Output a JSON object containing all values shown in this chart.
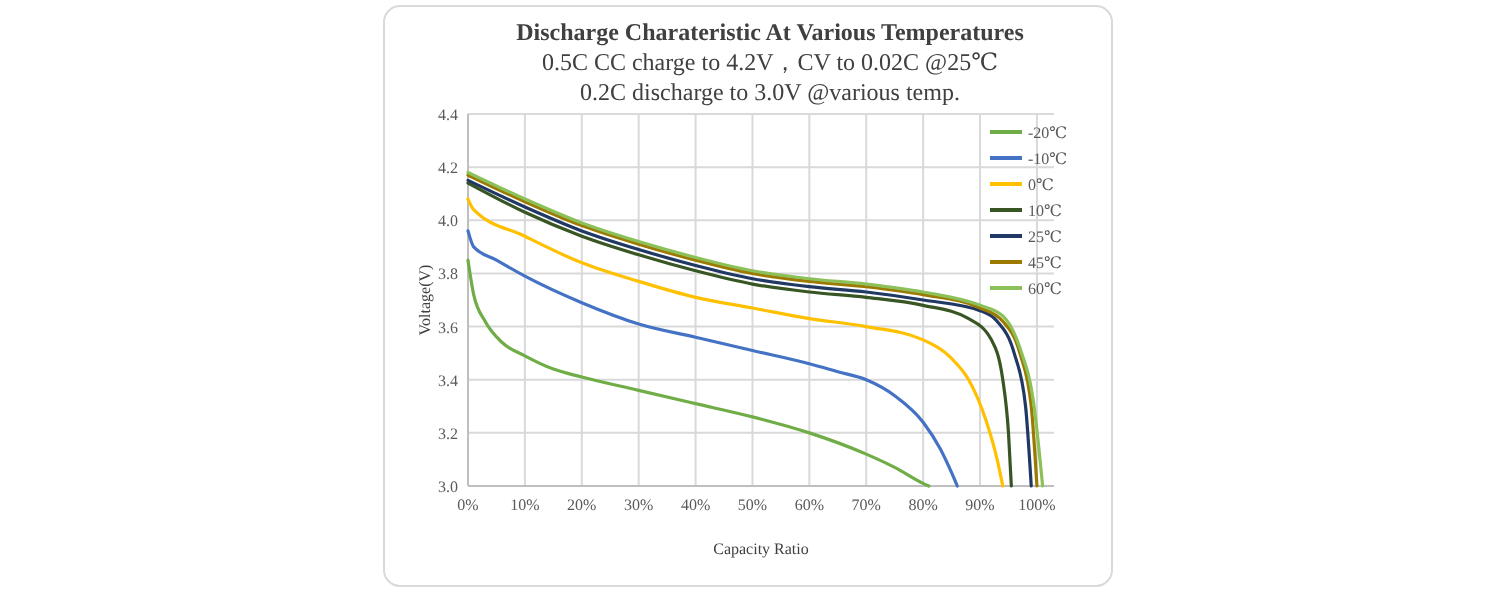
{
  "chart_data": {
    "type": "line",
    "title": "Discharge Charateristic At Various Temperatures",
    "subtitle": "0.5C CC charge to 4.2V，CV to 0.02C @25℃\n0.2C discharge to 3.0V @various temp.",
    "xlabel": "Capacity Ratio",
    "ylabel": "Voltage(V)",
    "xlim": [
      0,
      103
    ],
    "xticks": [
      {
        "value": 0,
        "label": "0%"
      },
      {
        "value": 10,
        "label": "10%"
      },
      {
        "value": 20,
        "label": "20%"
      },
      {
        "value": 30,
        "label": "30%"
      },
      {
        "value": 40,
        "label": "40%"
      },
      {
        "value": 50,
        "label": "50%"
      },
      {
        "value": 60,
        "label": "60%"
      },
      {
        "value": 70,
        "label": "70%"
      },
      {
        "value": 80,
        "label": "80%"
      },
      {
        "value": 90,
        "label": "90%"
      },
      {
        "value": 100,
        "label": "100%"
      }
    ],
    "ylim": [
      3.0,
      4.4
    ],
    "yticks": [
      {
        "value": 3.0,
        "label": "3.0"
      },
      {
        "value": 3.2,
        "label": "3.2"
      },
      {
        "value": 3.4,
        "label": "3.4"
      },
      {
        "value": 3.6,
        "label": "3.6"
      },
      {
        "value": 3.8,
        "label": "3.8"
      },
      {
        "value": 4.0,
        "label": "4.0"
      },
      {
        "value": 4.2,
        "label": "4.2"
      },
      {
        "value": 4.4,
        "label": "4.4"
      }
    ],
    "grid": true,
    "legend": "top right",
    "marker": "none",
    "line_style": "solid",
    "series": [
      {
        "name": "-20℃",
        "color": "#70ad47",
        "x": [
          0,
          1,
          3,
          6,
          10,
          15,
          20,
          30,
          40,
          50,
          60,
          70,
          75,
          80,
          81
        ],
        "values": [
          3.85,
          3.72,
          3.62,
          3.54,
          3.49,
          3.44,
          3.41,
          3.36,
          3.31,
          3.26,
          3.2,
          3.12,
          3.07,
          3.01,
          3.0
        ]
      },
      {
        "name": "-10℃",
        "color": "#4472c4",
        "x": [
          0,
          1,
          5,
          10,
          20,
          30,
          40,
          50,
          60,
          65,
          70,
          75,
          80,
          83,
          85,
          86
        ],
        "values": [
          3.96,
          3.9,
          3.85,
          3.79,
          3.69,
          3.61,
          3.56,
          3.51,
          3.46,
          3.43,
          3.4,
          3.34,
          3.24,
          3.14,
          3.05,
          3.0
        ]
      },
      {
        "name": "0℃",
        "color": "#ffc000",
        "x": [
          0,
          1,
          10,
          20,
          30,
          40,
          50,
          60,
          70,
          80,
          85,
          88,
          91,
          93,
          94
        ],
        "values": [
          4.08,
          4.04,
          3.94,
          3.84,
          3.77,
          3.71,
          3.67,
          3.63,
          3.6,
          3.55,
          3.48,
          3.4,
          3.25,
          3.1,
          3.0
        ]
      },
      {
        "name": "10℃",
        "color": "#375623",
        "x": [
          0,
          10,
          20,
          30,
          40,
          50,
          60,
          70,
          80,
          88,
          92,
          94,
          95,
          95.5
        ],
        "values": [
          4.14,
          4.03,
          3.94,
          3.87,
          3.81,
          3.76,
          3.73,
          3.71,
          3.68,
          3.63,
          3.55,
          3.4,
          3.2,
          3.0
        ]
      },
      {
        "name": "25℃",
        "color": "#203864",
        "x": [
          0,
          10,
          20,
          30,
          40,
          50,
          60,
          70,
          80,
          90,
          93,
          96,
          98,
          99
        ],
        "values": [
          4.15,
          4.05,
          3.96,
          3.89,
          3.83,
          3.78,
          3.75,
          3.73,
          3.7,
          3.66,
          3.62,
          3.5,
          3.3,
          3.0
        ]
      },
      {
        "name": "45℃",
        "color": "#9c7a00",
        "x": [
          0,
          10,
          20,
          30,
          40,
          50,
          60,
          70,
          80,
          90,
          94,
          97,
          99,
          100
        ],
        "values": [
          4.17,
          4.07,
          3.98,
          3.91,
          3.85,
          3.8,
          3.77,
          3.75,
          3.72,
          3.67,
          3.62,
          3.5,
          3.3,
          3.0
        ]
      },
      {
        "name": "60℃",
        "color": "#8cc15a",
        "x": [
          0,
          10,
          20,
          30,
          40,
          50,
          60,
          70,
          80,
          90,
          94,
          97,
          99.5,
          101
        ],
        "values": [
          4.18,
          4.08,
          3.99,
          3.92,
          3.86,
          3.81,
          3.78,
          3.76,
          3.73,
          3.68,
          3.64,
          3.52,
          3.3,
          3.0
        ]
      }
    ]
  }
}
